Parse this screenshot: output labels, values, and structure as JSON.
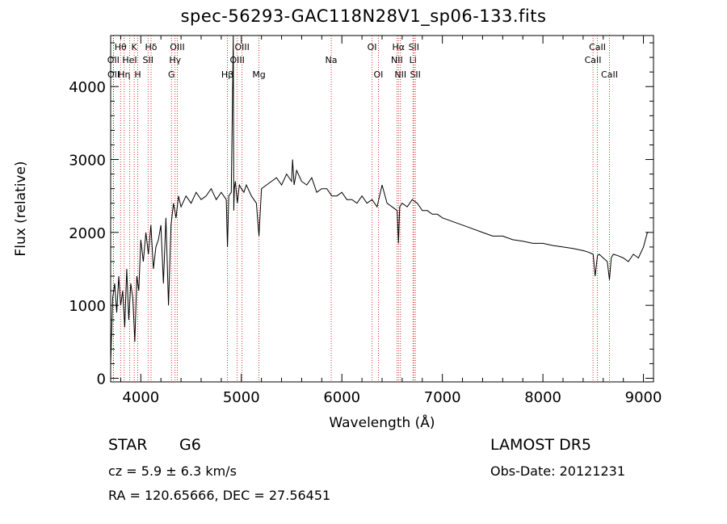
{
  "chart_data": {
    "type": "line",
    "title": "spec-56293-GAC118N28V1_sp06-133.fits",
    "xlabel": "Wavelength (Å)",
    "ylabel": "Flux (relative)",
    "xlim": [
      3700,
      9100
    ],
    "ylim": [
      -50,
      4700
    ],
    "x_ticks": [
      4000,
      5000,
      6000,
      7000,
      8000,
      9000
    ],
    "y_ticks": [
      0,
      1000,
      2000,
      3000,
      4000
    ],
    "grid": false,
    "series": [
      {
        "x": [
          3700,
          3720,
          3740,
          3760,
          3780,
          3800,
          3820,
          3840,
          3860,
          3880,
          3900,
          3920,
          3940,
          3960,
          3980,
          4000,
          4025,
          4050,
          4075,
          4100,
          4125,
          4150,
          4175,
          4200,
          4225,
          4250,
          4275,
          4300,
          4325,
          4350,
          4375,
          4400,
          4450,
          4500,
          4550,
          4600,
          4650,
          4700,
          4750,
          4800,
          4850,
          4862,
          4875,
          4900,
          4920,
          4925,
          4930,
          4940,
          4960,
          4980,
          5000,
          5025,
          5050,
          5100,
          5150,
          5175,
          5200,
          5250,
          5300,
          5350,
          5400,
          5450,
          5500,
          5510,
          5525,
          5550,
          5600,
          5650,
          5700,
          5750,
          5800,
          5850,
          5900,
          5950,
          6000,
          6050,
          6100,
          6150,
          6200,
          6250,
          6300,
          6350,
          6400,
          6450,
          6500,
          6550,
          6563,
          6575,
          6600,
          6650,
          6700,
          6750,
          6800,
          6850,
          6900,
          6950,
          7000,
          7100,
          7200,
          7300,
          7400,
          7500,
          7600,
          7700,
          7800,
          7900,
          8000,
          8100,
          8200,
          8300,
          8400,
          8450,
          8500,
          8520,
          8542,
          8560,
          8600,
          8640,
          8662,
          8680,
          8700,
          8750,
          8800,
          8850,
          8900,
          8950,
          9000,
          9020,
          9040,
          9050
        ],
        "y": [
          200,
          1100,
          1300,
          900,
          1400,
          1000,
          1200,
          700,
          1500,
          800,
          1300,
          1100,
          500,
          1400,
          1200,
          1900,
          1600,
          2000,
          1700,
          2100,
          1500,
          1800,
          1900,
          2100,
          1300,
          2200,
          1000,
          2100,
          2400,
          2200,
          2500,
          2350,
          2500,
          2400,
          2550,
          2450,
          2500,
          2600,
          2450,
          2550,
          2450,
          1800,
          2500,
          2550,
          4700,
          2300,
          2600,
          2700,
          2400,
          2650,
          2600,
          2550,
          2650,
          2500,
          2400,
          1950,
          2600,
          2650,
          2700,
          2750,
          2650,
          2800,
          2700,
          3000,
          2650,
          2850,
          2700,
          2650,
          2750,
          2550,
          2600,
          2600,
          2500,
          2500,
          2550,
          2450,
          2450,
          2400,
          2500,
          2400,
          2450,
          2350,
          2650,
          2400,
          2350,
          2300,
          1850,
          2350,
          2400,
          2350,
          2450,
          2400,
          2300,
          2300,
          2250,
          2250,
          2200,
          2150,
          2100,
          2050,
          2000,
          1950,
          1950,
          1900,
          1880,
          1850,
          1850,
          1820,
          1800,
          1780,
          1750,
          1730,
          1700,
          1400,
          1680,
          1700,
          1650,
          1600,
          1350,
          1650,
          1700,
          1680,
          1650,
          1600,
          1700,
          1650,
          1800,
          1900,
          2000,
          2000
        ]
      }
    ],
    "annotations": [
      {
        "label": "Hθ",
        "x": 3798,
        "row": 0
      },
      {
        "label": "OII",
        "x": 3727,
        "row": 1
      },
      {
        "label": "OII",
        "x": 3729,
        "row": 2
      },
      {
        "label": "Hη",
        "x": 3835,
        "row": 2
      },
      {
        "label": "HeI",
        "x": 3889,
        "row": 1
      },
      {
        "label": "K",
        "x": 3934,
        "row": 0
      },
      {
        "label": "H",
        "x": 3969,
        "row": 2
      },
      {
        "label": "Hδ",
        "x": 4102,
        "row": 0
      },
      {
        "label": "SII",
        "x": 4072,
        "row": 1
      },
      {
        "label": "OIII",
        "x": 4363,
        "row": 0
      },
      {
        "label": "Hγ",
        "x": 4341,
        "row": 1
      },
      {
        "label": "G",
        "x": 4305,
        "row": 2
      },
      {
        "label": "OIII",
        "x": 5007,
        "row": 0
      },
      {
        "label": "OIII",
        "x": 4959,
        "row": 1
      },
      {
        "label": "Hβ",
        "x": 4861,
        "row": 2
      },
      {
        "label": "Mg",
        "x": 5175,
        "row": 2
      },
      {
        "label": "Na",
        "x": 5894,
        "row": 1
      },
      {
        "label": "OI",
        "x": 6300,
        "row": 0
      },
      {
        "label": "OI",
        "x": 6363,
        "row": 2
      },
      {
        "label": "Hα",
        "x": 6563,
        "row": 0
      },
      {
        "label": "NII",
        "x": 6548,
        "row": 1
      },
      {
        "label": "NII",
        "x": 6583,
        "row": 2
      },
      {
        "label": "SII",
        "x": 6716,
        "row": 0
      },
      {
        "label": "Li",
        "x": 6707,
        "row": 1
      },
      {
        "label": "SII",
        "x": 6731,
        "row": 2
      },
      {
        "label": "CaII",
        "x": 8542,
        "row": 0
      },
      {
        "label": "CaII",
        "x": 8498,
        "row": 1
      },
      {
        "label": "CaII",
        "x": 8662,
        "row": 2
      }
    ]
  },
  "info": {
    "class": "STAR",
    "subclass": "G6",
    "cz": "cz = 5.9 ± 6.3 km/s",
    "coords": "RA = 120.65666, DEC =  27.56451",
    "survey": "LAMOST  DR5",
    "obs_date": "Obs-Date: 20121231"
  },
  "colors": {
    "line_marker": "#cc0000",
    "spectrum": "#000000",
    "axis": "#000000"
  }
}
